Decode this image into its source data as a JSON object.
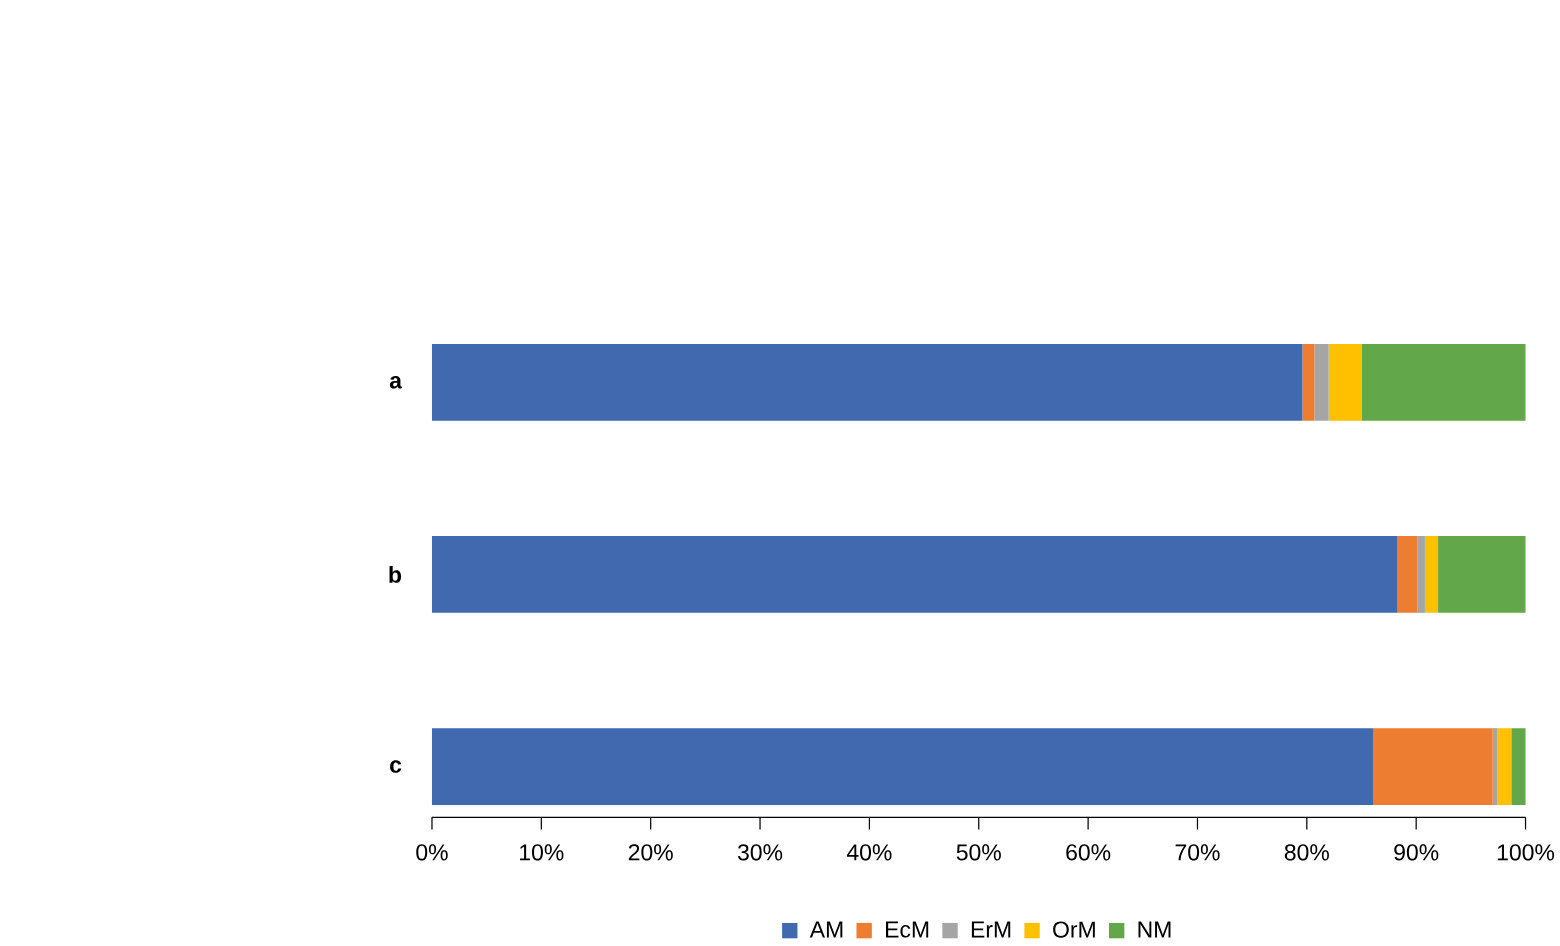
{
  "chart_data": {
    "type": "bar",
    "orientation": "horizontal",
    "stacked": true,
    "categories": [
      "a",
      "b",
      "c"
    ],
    "series": [
      {
        "name": "AM",
        "color": "#4169b0",
        "values": [
          79.6,
          88.3,
          86.1
        ]
      },
      {
        "name": "EcM",
        "color": "#ed7d31",
        "values": [
          1.1,
          1.8,
          10.9
        ]
      },
      {
        "name": "ErM",
        "color": "#a5a5a5",
        "values": [
          1.3,
          0.7,
          0.4
        ]
      },
      {
        "name": "OrM",
        "color": "#ffc000",
        "values": [
          3.0,
          1.2,
          1.3
        ]
      },
      {
        "name": "NM",
        "color": "#62a84a",
        "values": [
          15.0,
          8.0,
          1.3
        ]
      }
    ],
    "xlim": [
      0,
      100
    ],
    "xticks": [
      {
        "value": 0,
        "label": "0%"
      },
      {
        "value": 10,
        "label": "10%"
      },
      {
        "value": 20,
        "label": "20%"
      },
      {
        "value": 30,
        "label": "30%"
      },
      {
        "value": 40,
        "label": "40%"
      },
      {
        "value": 50,
        "label": "50%"
      },
      {
        "value": 60,
        "label": "60%"
      },
      {
        "value": 70,
        "label": "70%"
      },
      {
        "value": 80,
        "label": "80%"
      },
      {
        "value": 90,
        "label": "90%"
      },
      {
        "value": 100,
        "label": "100%"
      }
    ],
    "grid": false,
    "legend": "bottom"
  }
}
